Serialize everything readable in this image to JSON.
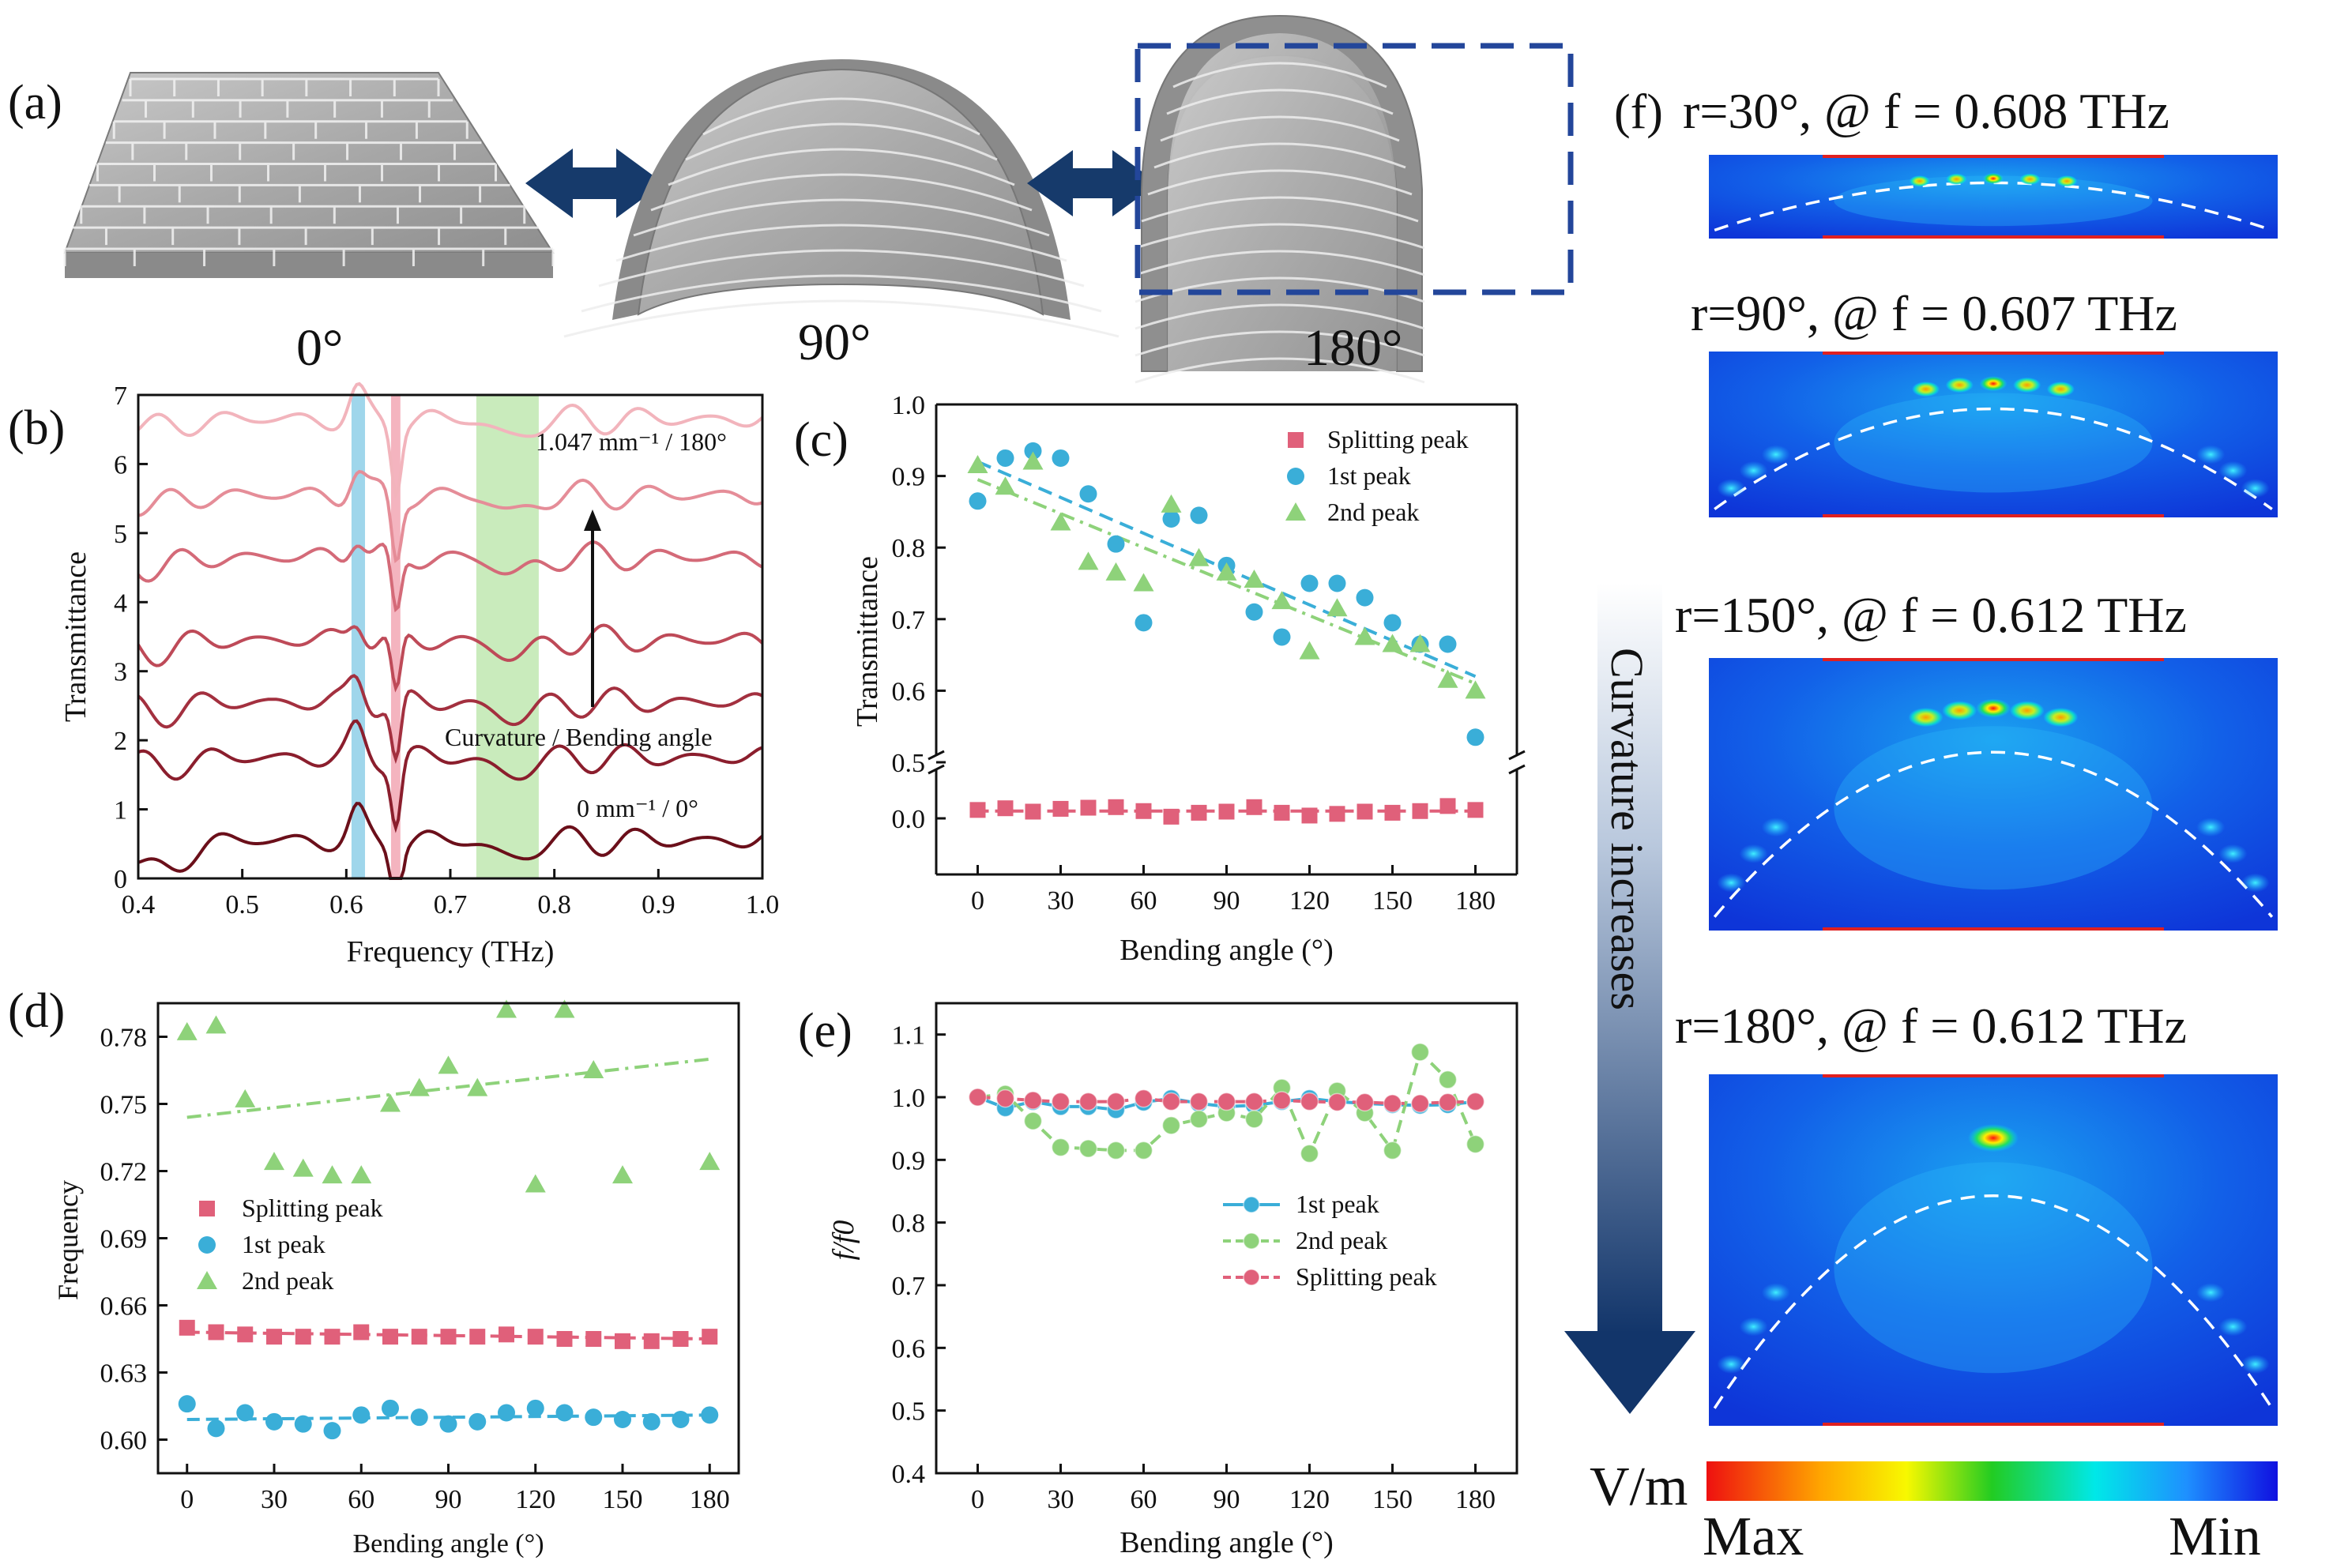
{
  "panels": {
    "a": {
      "label": "(a)",
      "angles": [
        "0°",
        "90°",
        "180°"
      ]
    },
    "b": {
      "label": "(b)"
    },
    "c": {
      "label": "(c)"
    },
    "d": {
      "label": "(d)"
    },
    "e": {
      "label": "(e)"
    },
    "f": {
      "label": "(f)",
      "fields": [
        {
          "title": "r=30°, @ f = 0.608 THz"
        },
        {
          "title": "r=90°, @ f = 0.607 THz"
        },
        {
          "title": "r=150°, @ f = 0.612 THz"
        },
        {
          "title": "r=180°, @ f = 0.612 THz"
        }
      ],
      "arrow_text": "Curvature increases",
      "colorbar": {
        "unit": "V/m",
        "max_label": "Max",
        "min_label": "Min",
        "colors": [
          "#ee1010",
          "#ffa500",
          "#f8f800",
          "#22cc22",
          "#00e8e8",
          "#1e90ff",
          "#1010e0"
        ]
      }
    }
  },
  "chart_data": [
    {
      "panel": "b",
      "type": "line",
      "xlabel": "Frequency (THz)",
      "ylabel": "Transmittance",
      "xlim": [
        0.4,
        1.0
      ],
      "ylim": [
        0,
        7
      ],
      "xticks": [
        "0.4",
        "0.5",
        "0.6",
        "0.7",
        "0.8",
        "0.9",
        "1.0"
      ],
      "yticks": [
        "0",
        "1",
        "2",
        "3",
        "4",
        "5",
        "6",
        "7"
      ],
      "annotations": {
        "top": "1.047 mm⁻¹ / 180°",
        "bottom": "0 mm⁻¹ / 0°",
        "arrow": "Curvature / Bending angle"
      },
      "bands": [
        {
          "x": [
            0.605,
            0.618
          ],
          "color": "#8ecfe8"
        },
        {
          "x": [
            0.643,
            0.652
          ],
          "color": "#f2a7b4"
        },
        {
          "x": [
            0.725,
            0.785
          ],
          "color": "#bfe8b0"
        }
      ],
      "curves": [
        {
          "offset": 0.0,
          "color": "#6b0f1a"
        },
        {
          "offset": 1.2,
          "color": "#8b1e2d"
        },
        {
          "offset": 2.0,
          "color": "#a3303f"
        },
        {
          "offset": 2.9,
          "color": "#be4a58"
        },
        {
          "offset": 4.1,
          "color": "#d46a78"
        },
        {
          "offset": 5.0,
          "color": "#e58d98"
        },
        {
          "offset": 6.1,
          "color": "#f2b4bc"
        }
      ]
    },
    {
      "panel": "c",
      "type": "scatter",
      "xlabel": "Bending angle (°)",
      "ylabel": "Transmittance",
      "xlim": [
        -15,
        195
      ],
      "ylim_lower": [
        -0.1,
        0.1
      ],
      "ylim_upper": [
        0.5,
        1.0
      ],
      "xticks": [
        "0",
        "30",
        "60",
        "90",
        "120",
        "150",
        "180"
      ],
      "yticks_upper": [
        "0.5",
        "0.6",
        "0.7",
        "0.8",
        "0.9",
        "1.0"
      ],
      "yticks_lower": [
        "0.0"
      ],
      "x": [
        0,
        10,
        20,
        30,
        40,
        50,
        60,
        70,
        80,
        90,
        100,
        110,
        120,
        130,
        140,
        150,
        160,
        170,
        180
      ],
      "series": [
        {
          "name": "Splitting peak",
          "color": "#e0607a",
          "marker": "square",
          "values": [
            0.015,
            0.018,
            0.012,
            0.017,
            0.019,
            0.02,
            0.013,
            0.003,
            0.01,
            0.012,
            0.02,
            0.01,
            0.005,
            0.008,
            0.012,
            0.01,
            0.013,
            0.022,
            0.015
          ],
          "fit": [
            0.013,
            0.013
          ]
        },
        {
          "name": "1st peak",
          "color": "#3aaed8",
          "marker": "circle",
          "values": [
            0.865,
            0.925,
            0.935,
            0.925,
            0.875,
            0.805,
            0.695,
            0.84,
            0.845,
            0.775,
            0.71,
            0.675,
            0.75,
            0.75,
            0.73,
            0.695,
            0.665,
            0.665,
            0.535
          ],
          "fit": [
            0.92,
            0.62
          ]
        },
        {
          "name": "2nd peak",
          "color": "#8ed27a",
          "marker": "triangle",
          "values": [
            0.915,
            0.885,
            0.92,
            0.835,
            0.78,
            0.765,
            0.75,
            0.86,
            0.785,
            0.765,
            0.755,
            0.725,
            0.655,
            0.715,
            0.675,
            0.665,
            0.665,
            0.615,
            0.6
          ],
          "fit": [
            0.895,
            0.61
          ]
        }
      ]
    },
    {
      "panel": "d",
      "type": "scatter",
      "xlabel": "Bending angle (°)",
      "ylabel": "Frequency",
      "xlim": [
        -10,
        190
      ],
      "ylim": [
        0.585,
        0.795
      ],
      "xticks": [
        "0",
        "30",
        "60",
        "90",
        "120",
        "150",
        "180"
      ],
      "yticks": [
        "0.60",
        "0.63",
        "0.66",
        "0.69",
        "0.72",
        "0.75",
        "0.78"
      ],
      "x": [
        0,
        10,
        20,
        30,
        40,
        50,
        60,
        70,
        80,
        90,
        100,
        110,
        120,
        130,
        140,
        150,
        160,
        170,
        180
      ],
      "series": [
        {
          "name": "Splitting peak",
          "color": "#e0607a",
          "marker": "square",
          "values": [
            0.65,
            0.648,
            0.647,
            0.646,
            0.646,
            0.646,
            0.648,
            0.646,
            0.646,
            0.646,
            0.646,
            0.647,
            0.646,
            0.645,
            0.645,
            0.644,
            0.644,
            0.645,
            0.646
          ],
          "fit": [
            0.648,
            0.645
          ]
        },
        {
          "name": "1st peak",
          "color": "#3aaed8",
          "marker": "circle",
          "values": [
            0.616,
            0.605,
            0.612,
            0.608,
            0.607,
            0.604,
            0.611,
            0.614,
            0.61,
            0.607,
            0.608,
            0.612,
            0.614,
            0.612,
            0.61,
            0.609,
            0.608,
            0.609,
            0.611
          ],
          "fit": [
            0.609,
            0.611
          ]
        },
        {
          "name": "2nd peak",
          "color": "#8ed27a",
          "marker": "triangle",
          "values": [
            0.782,
            0.785,
            0.752,
            0.724,
            0.721,
            0.718,
            0.718,
            0.75,
            0.757,
            0.767,
            0.757,
            0.792,
            0.714,
            0.792,
            0.765,
            0.718,
            null,
            null,
            0.724
          ],
          "fit": [
            0.744,
            0.77
          ]
        }
      ]
    },
    {
      "panel": "e",
      "type": "line",
      "xlabel": "Bending angle (°)",
      "ylabel": "f/f0",
      "xlim": [
        -15,
        195
      ],
      "ylim": [
        0.4,
        1.15
      ],
      "xticks": [
        "0",
        "30",
        "60",
        "90",
        "120",
        "150",
        "180"
      ],
      "yticks": [
        "0.4",
        "0.5",
        "0.6",
        "0.7",
        "0.8",
        "0.9",
        "1.0",
        "1.1"
      ],
      "x": [
        0,
        10,
        20,
        30,
        40,
        50,
        60,
        70,
        80,
        90,
        100,
        110,
        120,
        130,
        140,
        150,
        160,
        170,
        180
      ],
      "series": [
        {
          "name": "1st peak",
          "color": "#3aaed8",
          "style": "solid",
          "values": [
            1.0,
            0.983,
            0.993,
            0.985,
            0.985,
            0.98,
            0.992,
            0.998,
            0.99,
            0.985,
            0.987,
            0.993,
            0.998,
            0.993,
            0.99,
            0.988,
            0.987,
            0.988,
            0.993
          ]
        },
        {
          "name": "2nd peak",
          "color": "#8ed27a",
          "style": "dash",
          "values": [
            1.0,
            1.005,
            0.962,
            0.92,
            0.918,
            0.915,
            0.915,
            0.955,
            0.965,
            0.975,
            0.965,
            1.015,
            0.91,
            1.01,
            0.975,
            0.915,
            1.072,
            1.028,
            0.925
          ]
        },
        {
          "name": "Splitting peak",
          "color": "#e0607a",
          "style": "dash",
          "values": [
            1.0,
            0.998,
            0.995,
            0.993,
            0.993,
            0.993,
            0.998,
            0.993,
            0.993,
            0.993,
            0.993,
            0.995,
            0.993,
            0.992,
            0.992,
            0.99,
            0.99,
            0.992,
            0.993
          ]
        }
      ]
    }
  ]
}
